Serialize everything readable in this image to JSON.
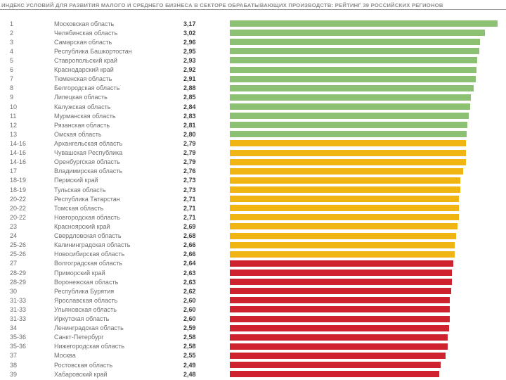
{
  "title": "ИНДЕКС УСЛОВИЙ ДЛЯ РАЗВИТИЯ МАЛОГО И СРЕДНЕГО БИЗНЕСА В СЕКТОРЕ ОБРАБАТЫВАЮЩИХ ПРОИЗВОДСТВ: РЕЙТИНГ 39 РОССИЙСКИХ РЕГИОНОВ",
  "colors": {
    "green": "#8cc174",
    "yellow": "#f0b512",
    "red": "#cf222f",
    "title_text": "#8a8a8a",
    "divider": "#9d9d9d"
  },
  "chart_data": {
    "type": "bar",
    "orientation": "horizontal",
    "title": "ИНДЕКС УСЛОВИЙ ДЛЯ РАЗВИТИЯ МАЛОГО И СРЕДНЕГО БИЗНЕСА В СЕКТОРЕ ОБРАБАТЫВАЮЩИХ ПРОИЗВОДСТВ: РЕЙТИНГ 39 РОССИЙСКИХ РЕГИОНОВ",
    "xlim": [
      0,
      3.25
    ],
    "grid": false,
    "legend": false,
    "rows": [
      {
        "rank": "1",
        "region": "Московская область",
        "value_label": "3,17",
        "value": 3.17,
        "band": "green"
      },
      {
        "rank": "2",
        "region": "Челябинская область",
        "value_label": "3,02",
        "value": 3.02,
        "band": "green"
      },
      {
        "rank": "3",
        "region": "Самарская область",
        "value_label": "2,96",
        "value": 2.96,
        "band": "green"
      },
      {
        "rank": "4",
        "region": "Республика Башкортостан",
        "value_label": "2,95",
        "value": 2.95,
        "band": "green"
      },
      {
        "rank": "5",
        "region": "Ставропольский край",
        "value_label": "2,93",
        "value": 2.93,
        "band": "green"
      },
      {
        "rank": "6",
        "region": "Краснодарский край",
        "value_label": "2,92",
        "value": 2.92,
        "band": "green"
      },
      {
        "rank": "7",
        "region": "Тюменская область",
        "value_label": "2,91",
        "value": 2.91,
        "band": "green"
      },
      {
        "rank": "8",
        "region": "Белгородская область",
        "value_label": "2,88",
        "value": 2.88,
        "band": "green"
      },
      {
        "rank": "9",
        "region": "Липецкая область",
        "value_label": "2,85",
        "value": 2.85,
        "band": "green"
      },
      {
        "rank": "10",
        "region": "Калужская область",
        "value_label": "2,84",
        "value": 2.84,
        "band": "green"
      },
      {
        "rank": "11",
        "region": "Мурманская область",
        "value_label": "2,83",
        "value": 2.83,
        "band": "green"
      },
      {
        "rank": "12",
        "region": "Рязанская область",
        "value_label": "2,81",
        "value": 2.81,
        "band": "green"
      },
      {
        "rank": "13",
        "region": "Омская область",
        "value_label": "2,80",
        "value": 2.8,
        "band": "green"
      },
      {
        "rank": "14-16",
        "region": "Архангельская область",
        "value_label": "2,79",
        "value": 2.79,
        "band": "yellow"
      },
      {
        "rank": "14-16",
        "region": "Чувашская Республика",
        "value_label": "2,79",
        "value": 2.79,
        "band": "yellow"
      },
      {
        "rank": "14-16",
        "region": "Оренбургская область",
        "value_label": "2,79",
        "value": 2.79,
        "band": "yellow"
      },
      {
        "rank": "17",
        "region": "Владимирская область",
        "value_label": "2,76",
        "value": 2.76,
        "band": "yellow"
      },
      {
        "rank": "18-19",
        "region": "Пермский край",
        "value_label": "2,73",
        "value": 2.73,
        "band": "yellow"
      },
      {
        "rank": "18-19",
        "region": "Тульская область",
        "value_label": "2,73",
        "value": 2.73,
        "band": "yellow"
      },
      {
        "rank": "20-22",
        "region": "Республика Татарстан",
        "value_label": "2,71",
        "value": 2.71,
        "band": "yellow"
      },
      {
        "rank": "20-22",
        "region": "Томская область",
        "value_label": "2,71",
        "value": 2.71,
        "band": "yellow"
      },
      {
        "rank": "20-22",
        "region": "Новгородская область",
        "value_label": "2,71",
        "value": 2.71,
        "band": "yellow"
      },
      {
        "rank": "23",
        "region": "Красноярский край",
        "value_label": "2,69",
        "value": 2.69,
        "band": "yellow"
      },
      {
        "rank": "24",
        "region": "Свердловская область",
        "value_label": "2,68",
        "value": 2.68,
        "band": "yellow"
      },
      {
        "rank": "25-26",
        "region": "Калининградская область",
        "value_label": "2,66",
        "value": 2.66,
        "band": "yellow"
      },
      {
        "rank": "25-26",
        "region": "Новосибирская область",
        "value_label": "2,66",
        "value": 2.66,
        "band": "yellow"
      },
      {
        "rank": "27",
        "region": "Волгоградская область",
        "value_label": "2,64",
        "value": 2.64,
        "band": "red"
      },
      {
        "rank": "28-29",
        "region": "Приморский край",
        "value_label": "2,63",
        "value": 2.63,
        "band": "red"
      },
      {
        "rank": "28-29",
        "region": "Воронежская область",
        "value_label": "2,63",
        "value": 2.63,
        "band": "red"
      },
      {
        "rank": "30",
        "region": "Республика Бурятия",
        "value_label": "2,62",
        "value": 2.62,
        "band": "red"
      },
      {
        "rank": "31-33",
        "region": "Ярославская область",
        "value_label": "2,60",
        "value": 2.6,
        "band": "red"
      },
      {
        "rank": "31-33",
        "region": "Ульяновская область",
        "value_label": "2,60",
        "value": 2.6,
        "band": "red"
      },
      {
        "rank": "31-33",
        "region": "Иркутская область",
        "value_label": "2,60",
        "value": 2.6,
        "band": "red"
      },
      {
        "rank": "34",
        "region": "Ленинградская область",
        "value_label": "2,59",
        "value": 2.59,
        "band": "red"
      },
      {
        "rank": "35-36",
        "region": "Санкт-Петербург",
        "value_label": "2,58",
        "value": 2.58,
        "band": "red"
      },
      {
        "rank": "35-36",
        "region": "Нижегородская область",
        "value_label": "2,58",
        "value": 2.58,
        "band": "red"
      },
      {
        "rank": "37",
        "region": "Москва",
        "value_label": "2,55",
        "value": 2.55,
        "band": "red"
      },
      {
        "rank": "38",
        "region": "Ростовская область",
        "value_label": "2,49",
        "value": 2.49,
        "band": "red"
      },
      {
        "rank": "39",
        "region": "Хабаровский край",
        "value_label": "2,48",
        "value": 2.48,
        "band": "red"
      }
    ]
  }
}
